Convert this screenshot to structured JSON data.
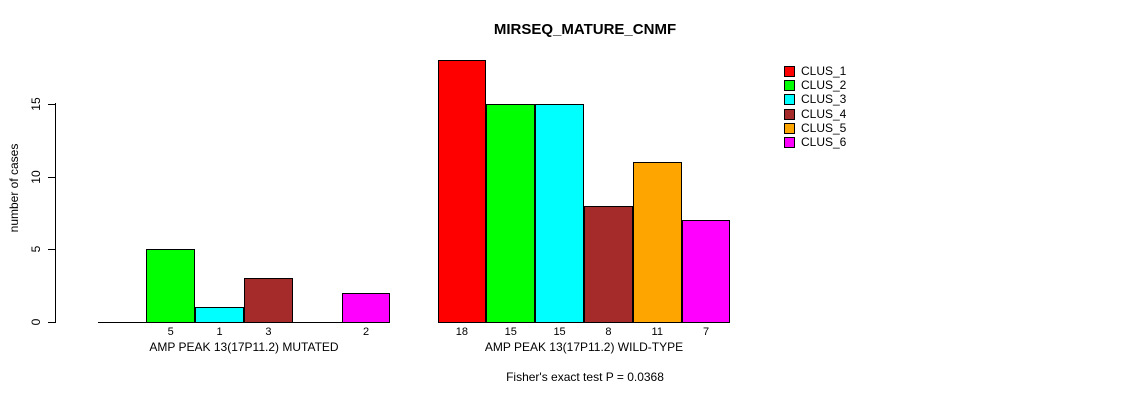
{
  "chart_data": {
    "type": "bar",
    "title": "MIRSEQ_MATURE_CNMF",
    "ylabel": "number of cases",
    "xlabel": "",
    "ylim": [
      0,
      18
    ],
    "yticks": [
      0,
      5,
      10,
      15
    ],
    "grid": false,
    "legend_position": "top-right",
    "clusters": [
      "CLUS_1",
      "CLUS_2",
      "CLUS_3",
      "CLUS_4",
      "CLUS_5",
      "CLUS_6"
    ],
    "colors": [
      "#FF0000",
      "#00FF00",
      "#00FFFF",
      "#A52A2A",
      "#FFA500",
      "#FF00FF"
    ],
    "groups": [
      {
        "label": "AMP PEAK 13(17P11.2) MUTATED",
        "values": [
          0,
          5,
          1,
          3,
          0,
          2
        ],
        "visible_bar_count_labels": [
          "5",
          "1",
          "3",
          "2"
        ]
      },
      {
        "label": "AMP PEAK 13(17P11.2) WILD-TYPE",
        "values": [
          18,
          15,
          15,
          8,
          11,
          7
        ],
        "visible_bar_count_labels": [
          "18",
          "15",
          "15",
          "8",
          "11",
          "7"
        ]
      }
    ],
    "annotation": "Fisher's exact test P = 0.0368"
  }
}
